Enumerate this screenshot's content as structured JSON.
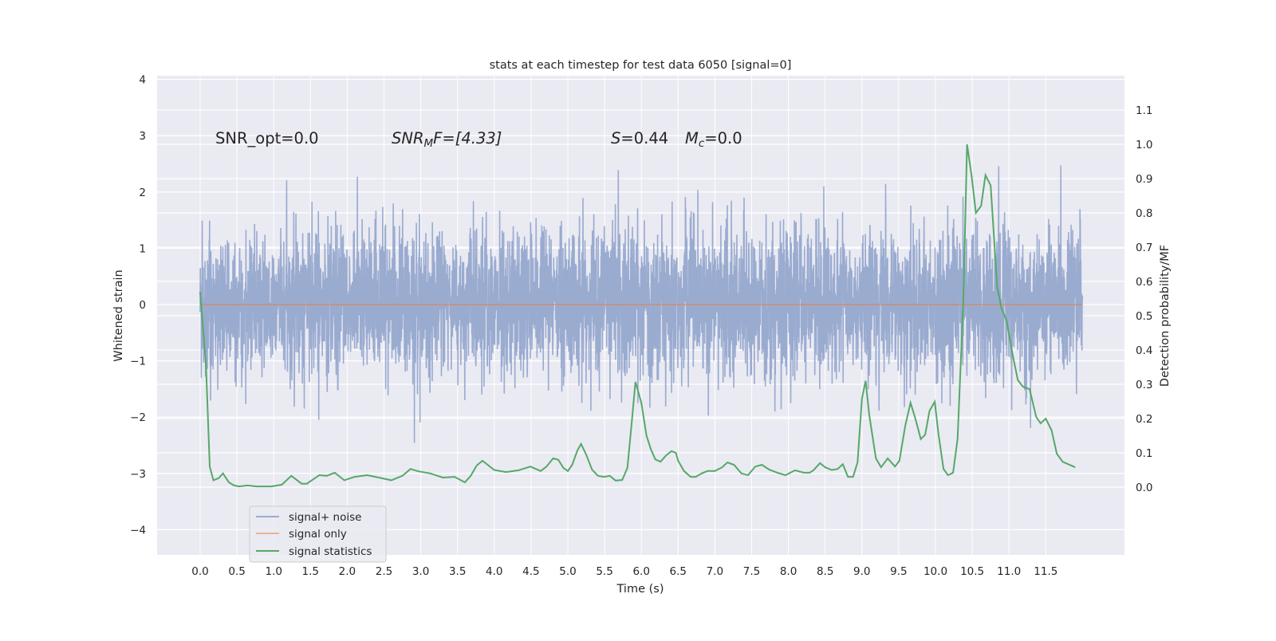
{
  "chart_data": {
    "type": "line",
    "title": "stats at each timestep for test data 6050 [signal=0]",
    "xlabel": "Time (s)",
    "ylabel": "Whitened strain",
    "ylabel_right": "Detection probability/MF",
    "xlim": [
      -0.6,
      12.6
    ],
    "ylim": [
      -4.45,
      4.1
    ],
    "ylim_right": [
      -0.2,
      1.21
    ],
    "x_ticks": [
      "0.0",
      "0.5",
      "1.0",
      "1.5",
      "2.0",
      "2.5",
      "3.0",
      "3.5",
      "4.0",
      "4.5",
      "5.0",
      "5.5",
      "6.0",
      "6.5",
      "7.0",
      "7.5",
      "8.0",
      "8.5",
      "9.0",
      "9.5",
      "10.0",
      "10.5",
      "11.0",
      "11.5"
    ],
    "y_ticks": [
      "4",
      "3",
      "2",
      "1",
      "0",
      "−1",
      "−2",
      "−3",
      "−4"
    ],
    "y_ticks_right": [
      "1.1",
      "1.0",
      "0.9",
      "0.8",
      "0.7",
      "0.6",
      "0.5",
      "0.4",
      "0.3",
      "0.2",
      "0.1",
      "0.0"
    ],
    "grid": true,
    "legend_position": "lower-left",
    "colors": {
      "noise": "#4c72b0",
      "signal": "#dd8452",
      "stats": "#55a868",
      "background": "#eaeaf2"
    },
    "annotations": {
      "snr_opt": "SNR_opt=0.0",
      "snr_mf_main": "SNR",
      "snr_mf_sub1": "M",
      "snr_mf_rest": "F=[4.33]",
      "s_label": "S",
      "s_value": "=0.44",
      "mc_label": "M",
      "mc_sub": "c",
      "mc_value": "=0.0"
    },
    "series": [
      {
        "name": "signal+ noise",
        "axis": "left",
        "description_stats": {
          "t_start": 0,
          "t_end": 12.0,
          "std": 0.72
        }
      },
      {
        "name": "signal only",
        "axis": "left",
        "x": [
          0,
          12.0
        ],
        "y": [
          0,
          0
        ]
      },
      {
        "name": "signal statistics",
        "axis": "right",
        "x": [
          0,
          0.08,
          0.13,
          0.18,
          0.25,
          0.31,
          0.39,
          0.46,
          0.53,
          0.64,
          0.77,
          0.97,
          1.11,
          1.24,
          1.38,
          1.45,
          1.54,
          1.62,
          1.72,
          1.83,
          1.96,
          2.1,
          2.27,
          2.43,
          2.6,
          2.75,
          2.86,
          2.97,
          3.13,
          3.3,
          3.46,
          3.6,
          3.68,
          3.76,
          3.84,
          4.0,
          4.16,
          4.33,
          4.49,
          4.63,
          4.71,
          4.8,
          4.87,
          4.94,
          5.0,
          5.06,
          5.13,
          5.18,
          5.25,
          5.33,
          5.41,
          5.49,
          5.57,
          5.65,
          5.74,
          5.81,
          5.87,
          5.92,
          6.0,
          6.07,
          6.13,
          6.19,
          6.26,
          6.34,
          6.41,
          6.47,
          6.5,
          6.58,
          6.67,
          6.74,
          6.82,
          6.9,
          7.0,
          7.1,
          7.17,
          7.26,
          7.36,
          7.45,
          7.55,
          7.64,
          7.74,
          7.85,
          7.96,
          8.09,
          8.21,
          8.29,
          8.34,
          8.43,
          8.5,
          8.59,
          8.67,
          8.74,
          8.81,
          8.88,
          8.94,
          9.0,
          9.05,
          9.1,
          9.19,
          9.26,
          9.35,
          9.45,
          9.51,
          9.59,
          9.66,
          9.72,
          9.8,
          9.86,
          9.92,
          9.99,
          10.04,
          10.11,
          10.17,
          10.24,
          10.3,
          10.38,
          10.43,
          10.49,
          10.55,
          10.62,
          10.68,
          10.75,
          10.84,
          10.9,
          10.97,
          11.05,
          11.12,
          11.19,
          11.28,
          11.37,
          11.43,
          11.5,
          11.58,
          11.65,
          11.73,
          11.9
        ],
        "y": [
          0.57,
          0.35,
          0.06,
          0.02,
          0.026,
          0.04,
          0.014,
          0.005,
          0.002,
          0.005,
          0.002,
          0.002,
          0.007,
          0.033,
          0.01,
          0.01,
          0.023,
          0.035,
          0.033,
          0.042,
          0.02,
          0.03,
          0.035,
          0.028,
          0.02,
          0.033,
          0.053,
          0.046,
          0.04,
          0.028,
          0.03,
          0.014,
          0.033,
          0.063,
          0.077,
          0.05,
          0.044,
          0.049,
          0.06,
          0.047,
          0.06,
          0.084,
          0.08,
          0.056,
          0.047,
          0.065,
          0.107,
          0.126,
          0.095,
          0.051,
          0.033,
          0.03,
          0.033,
          0.019,
          0.021,
          0.056,
          0.19,
          0.307,
          0.246,
          0.15,
          0.11,
          0.081,
          0.074,
          0.093,
          0.105,
          0.1,
          0.077,
          0.047,
          0.03,
          0.03,
          0.04,
          0.047,
          0.047,
          0.058,
          0.072,
          0.065,
          0.04,
          0.035,
          0.06,
          0.065,
          0.051,
          0.042,
          0.035,
          0.049,
          0.042,
          0.042,
          0.049,
          0.07,
          0.058,
          0.05,
          0.053,
          0.067,
          0.03,
          0.03,
          0.072,
          0.258,
          0.31,
          0.21,
          0.084,
          0.058,
          0.084,
          0.06,
          0.077,
          0.18,
          0.246,
          0.205,
          0.14,
          0.153,
          0.223,
          0.249,
          0.156,
          0.053,
          0.035,
          0.042,
          0.14,
          0.547,
          1.0,
          0.91,
          0.8,
          0.82,
          0.91,
          0.88,
          0.584,
          0.52,
          0.484,
          0.386,
          0.312,
          0.293,
          0.286,
          0.205,
          0.186,
          0.2,
          0.165,
          0.098,
          0.074,
          0.058
        ]
      }
    ],
    "legend": [
      "signal+ noise",
      "signal only",
      "signal statistics"
    ]
  }
}
